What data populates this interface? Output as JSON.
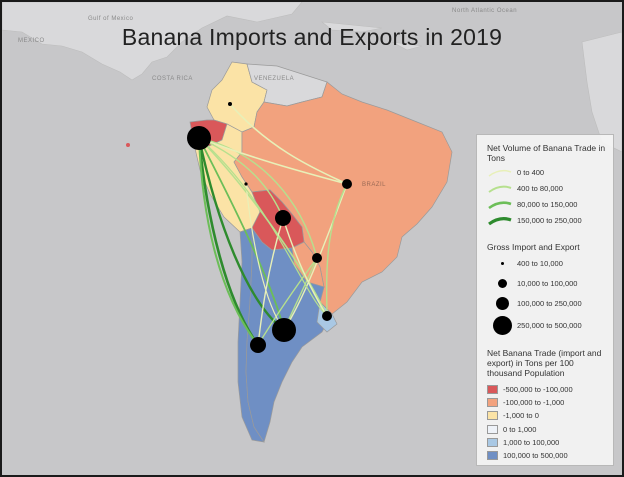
{
  "title": "Banana Imports and Exports in 2019",
  "geo_labels": {
    "gulf_of_mexico": "Gulf of Mexico",
    "mexico": "MEXICO",
    "costa_rica": "COSTA RICA",
    "venezuela": "VENEZUELA",
    "brazil": "BRAZIL",
    "north_atlantic": "North Atlantic Ocean"
  },
  "legend": {
    "volume": {
      "title": "Net Volume of Banana Trade in Tons",
      "items": [
        {
          "label": "0 to 400",
          "color": "#e8f0b8"
        },
        {
          "label": "400 to 80,000",
          "color": "#b6e08e"
        },
        {
          "label": "80,000 to 150,000",
          "color": "#6cbe58"
        },
        {
          "label": "150,000 to 250,000",
          "color": "#2e8b2e"
        }
      ]
    },
    "gross": {
      "title": "Gross Import and Export",
      "items": [
        {
          "label": "400 to 10,000"
        },
        {
          "label": "10,000 to 100,000"
        },
        {
          "label": "100,000 to 250,000"
        },
        {
          "label": "250,000 to 500,000"
        }
      ]
    },
    "net": {
      "title": "Net Banana Trade (import and export) in Tons per 100 thousand Population",
      "items": [
        {
          "label": "-500,000 to -100,000",
          "color": "#d9585a"
        },
        {
          "label": "-100,000 to -1,000",
          "color": "#f2a27e"
        },
        {
          "label": "-1,000 to 0",
          "color": "#fbe3a6"
        },
        {
          "label": "0 to 1,000",
          "color": "#eef2f8"
        },
        {
          "label": "1,000 to 100,000",
          "color": "#a9c8e4"
        },
        {
          "label": "100,000 to 500,000",
          "color": "#6f8fc4"
        }
      ]
    }
  }
}
